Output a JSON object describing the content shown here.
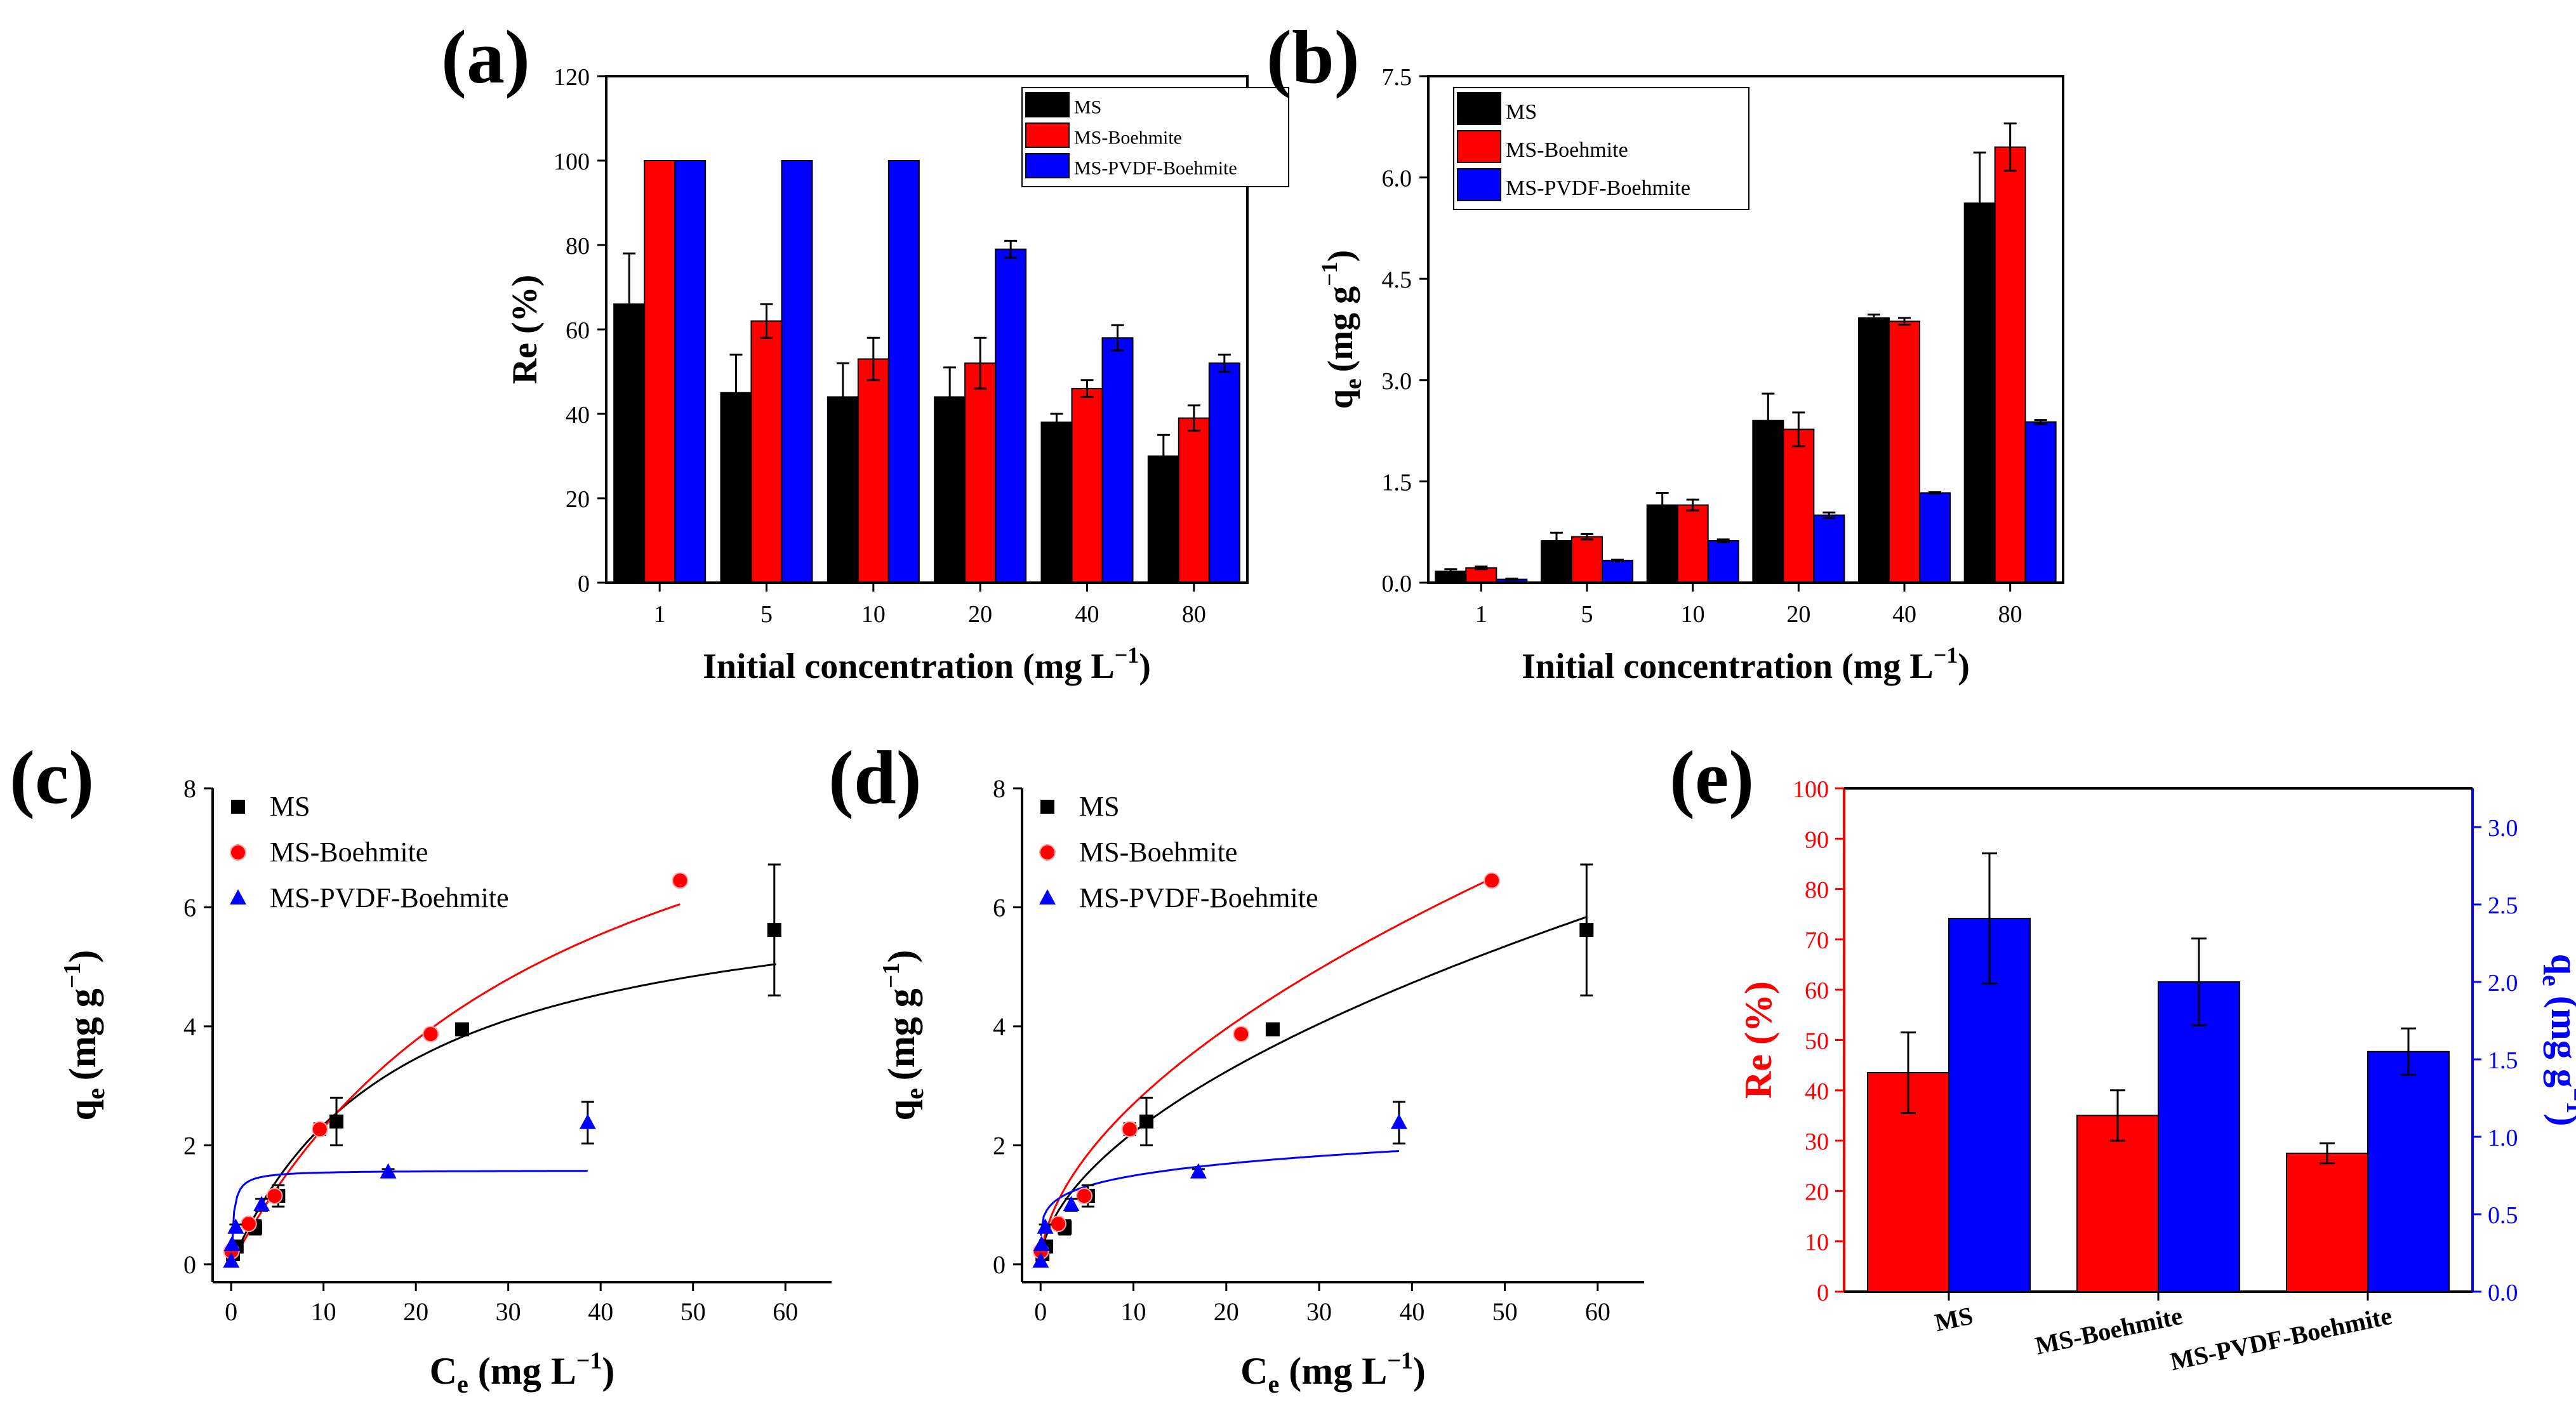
{
  "figure": {
    "colors": {
      "ms": "#000000",
      "msb": "#ff0000",
      "mspvdf": "#0000ff",
      "axis": "#000000"
    }
  },
  "chart_data": [
    {
      "id": "a",
      "panel_label": "(a)",
      "type": "bar",
      "xlabel": "Initial concentration (mg L",
      "xlabel_sup": "−1",
      "xlabel_end": ")",
      "ylabel": "Re (%)",
      "ylim": [
        0,
        120
      ],
      "yticks": [
        0,
        20,
        40,
        60,
        80,
        100,
        120
      ],
      "categories": [
        "1",
        "5",
        "10",
        "20",
        "40",
        "80"
      ],
      "legend_position": "top-right",
      "series": [
        {
          "name": "MS",
          "color": "#000000",
          "values": [
            66,
            45,
            44,
            44,
            38,
            30
          ],
          "errors": [
            12,
            9,
            8,
            7,
            2,
            5
          ]
        },
        {
          "name": "MS-Boehmite",
          "color": "#ff0000",
          "values": [
            100,
            62,
            53,
            52,
            46,
            39
          ],
          "errors": [
            0,
            4,
            5,
            6,
            2,
            3
          ]
        },
        {
          "name": "MS-PVDF-Boehmite",
          "color": "#0000ff",
          "values": [
            100,
            100,
            100,
            79,
            58,
            52
          ],
          "errors": [
            0,
            0,
            0,
            2,
            3,
            2
          ]
        }
      ]
    },
    {
      "id": "b",
      "panel_label": "(b)",
      "type": "bar",
      "xlabel": "Initial concentration (mg L",
      "xlabel_sup": "−1",
      "xlabel_end": ")",
      "ylabel": "q",
      "ylabel_sub": "e",
      "ylabel_unit": "(mg g",
      "ylabel_sup": "−1",
      "ylabel_end": ")",
      "ylim": [
        0,
        7.5
      ],
      "yticks": [
        0.0,
        1.5,
        3.0,
        4.5,
        6.0,
        7.5
      ],
      "ytick_labels": [
        "0.0",
        "1.5",
        "3.0",
        "4.5",
        "6.0",
        "7.5"
      ],
      "categories": [
        "1",
        "5",
        "10",
        "20",
        "40",
        "80"
      ],
      "legend_position": "top-left",
      "series": [
        {
          "name": "MS",
          "color": "#000000",
          "values": [
            0.17,
            0.62,
            1.15,
            2.4,
            3.92,
            5.62
          ],
          "errors": [
            0.03,
            0.12,
            0.18,
            0.4,
            0.05,
            0.75
          ]
        },
        {
          "name": "MS-Boehmite",
          "color": "#ff0000",
          "values": [
            0.22,
            0.68,
            1.15,
            2.27,
            3.87,
            6.45
          ],
          "errors": [
            0.02,
            0.04,
            0.08,
            0.25,
            0.05,
            0.35
          ]
        },
        {
          "name": "MS-PVDF-Boehmite",
          "color": "#0000ff",
          "values": [
            0.05,
            0.33,
            0.62,
            1.0,
            1.33,
            2.38
          ],
          "errors": [
            0.01,
            0.01,
            0.02,
            0.04,
            0.01,
            0.03
          ]
        }
      ]
    },
    {
      "id": "c",
      "panel_label": "(c)",
      "type": "scatter",
      "xlabel": "C",
      "xlabel_sub": "e",
      "xlabel_unit": " (mg L",
      "xlabel_sup": "−1",
      "xlabel_end": ")",
      "ylabel": "q",
      "ylabel_sub": "e",
      "ylabel_unit": "(mg g",
      "ylabel_sup": "−1",
      "ylabel_end": ")",
      "xlim": [
        -2,
        65
      ],
      "xticks": [
        0,
        10,
        20,
        30,
        40,
        50,
        60
      ],
      "ylim": [
        -0.3,
        8
      ],
      "yticks": [
        0,
        2,
        4,
        6,
        8
      ],
      "legend_position": "top-left",
      "series": [
        {
          "name": "MS",
          "color": "#000000",
          "marker": "square",
          "x": [
            0.2,
            0.6,
            2.6,
            5.1,
            11.4,
            25.0,
            58.8
          ],
          "y": [
            0.17,
            0.3,
            0.62,
            1.15,
            2.4,
            3.95,
            5.62
          ],
          "yerr": [
            0.03,
            0.05,
            0.12,
            0.18,
            0.4,
            0.05,
            1.1
          ],
          "fit": {
            "model": "langmuir",
            "qmax": 6.6,
            "K": 0.055,
            "xrange": [
              0,
              59
            ]
          }
        },
        {
          "name": "MS-Boehmite",
          "color": "#ff0000",
          "marker": "circle",
          "x": [
            0.03,
            1.9,
            4.7,
            9.6,
            21.6,
            48.6
          ],
          "y": [
            0.22,
            0.68,
            1.15,
            2.27,
            3.87,
            6.45
          ],
          "yerr": [
            0.02,
            0.04,
            0.08,
            0.1,
            0.05,
            0.06
          ],
          "fit": {
            "model": "langmuir",
            "qmax": 10.5,
            "K": 0.028,
            "xrange": [
              0,
              48.6
            ]
          }
        },
        {
          "name": "MS-PVDF-Boehmite",
          "color": "#0000ff",
          "marker": "triangle",
          "x": [
            0.01,
            0.1,
            0.5,
            3.3,
            17.0,
            38.6
          ],
          "y": [
            0.05,
            0.33,
            0.62,
            1.0,
            1.55,
            2.38
          ],
          "yerr": [
            0.01,
            0.02,
            0.05,
            0.1,
            0.05,
            0.35
          ],
          "fit": {
            "model": "langmuir",
            "qmax": 1.58,
            "K": 4.0,
            "xrange": [
              0,
              38.6
            ]
          }
        }
      ]
    },
    {
      "id": "d",
      "panel_label": "(d)",
      "type": "scatter",
      "xlabel": "C",
      "xlabel_sub": "e",
      "xlabel_unit": " (mg L",
      "xlabel_sup": "−1",
      "xlabel_end": ")",
      "ylabel": "q",
      "ylabel_sub": "e",
      "ylabel_unit": "(mg g",
      "ylabel_sup": "−1",
      "ylabel_end": ")",
      "xlim": [
        -2,
        65
      ],
      "xticks": [
        0,
        10,
        20,
        30,
        40,
        50,
        60
      ],
      "ylim": [
        -0.3,
        8
      ],
      "yticks": [
        0,
        2,
        4,
        6,
        8
      ],
      "legend_position": "top-left",
      "series": [
        {
          "name": "MS",
          "color": "#000000",
          "marker": "square",
          "x": [
            0.2,
            0.6,
            2.6,
            5.1,
            11.4,
            25.0,
            58.8
          ],
          "y": [
            0.17,
            0.3,
            0.62,
            1.15,
            2.4,
            3.95,
            5.62
          ],
          "yerr": [
            0.03,
            0.05,
            0.12,
            0.18,
            0.4,
            0.05,
            1.1
          ],
          "fit": {
            "model": "freundlich",
            "K": 0.63,
            "n": 1.83,
            "xrange": [
              0.05,
              58.8
            ]
          }
        },
        {
          "name": "MS-Boehmite",
          "color": "#ff0000",
          "marker": "circle",
          "x": [
            0.03,
            1.9,
            4.7,
            9.6,
            21.6,
            48.6
          ],
          "y": [
            0.22,
            0.68,
            1.15,
            2.27,
            3.87,
            6.45
          ],
          "yerr": [
            0.02,
            0.04,
            0.08,
            0.1,
            0.05,
            0.06
          ],
          "fit": {
            "model": "freundlich",
            "K": 0.75,
            "n": 1.8,
            "xrange": [
              0.02,
              48.6
            ]
          }
        },
        {
          "name": "MS-PVDF-Boehmite",
          "color": "#0000ff",
          "marker": "triangle",
          "x": [
            0.01,
            0.1,
            0.5,
            3.3,
            17.0,
            38.6
          ],
          "y": [
            0.05,
            0.33,
            0.62,
            1.0,
            1.55,
            2.38
          ],
          "yerr": [
            0.01,
            0.02,
            0.05,
            0.1,
            0.05,
            0.35
          ],
          "fit": {
            "model": "freundlich",
            "K": 0.98,
            "n": 5.5,
            "xrange": [
              0.02,
              38.6
            ]
          }
        }
      ]
    },
    {
      "id": "e",
      "panel_label": "(e)",
      "type": "bar",
      "ylabel": "Re (%)",
      "ylabel_color": "#ff0000",
      "ylim": [
        0,
        100
      ],
      "yticks": [
        0,
        10,
        20,
        30,
        40,
        50,
        60,
        70,
        80,
        90,
        100
      ],
      "y2label": "q",
      "y2label_sub": "e",
      "y2label_unit": " (mg g",
      "y2label_sup": "−1",
      "y2label_end": ")",
      "y2label_color": "#0000ff",
      "y2lim": [
        0,
        3.25
      ],
      "y2ticks": [
        0.0,
        0.5,
        1.0,
        1.5,
        2.0,
        2.5,
        3.0
      ],
      "y2tick_labels": [
        "0.0",
        "0.5",
        "1.0",
        "1.5",
        "2.0",
        "2.5",
        "3.0"
      ],
      "categories": [
        "MS",
        "MS-Boehmite",
        "MS-PVDF-Boehmite"
      ],
      "series": [
        {
          "name": "Re",
          "axis": "left",
          "color": "#ff0000",
          "values": [
            43.5,
            35,
            27.5
          ],
          "errors": [
            8,
            5,
            2
          ]
        },
        {
          "name": "qe",
          "axis": "right",
          "color": "#0000ff",
          "values": [
            2.41,
            2.0,
            1.55
          ],
          "errors": [
            0.42,
            0.28,
            0.15
          ]
        }
      ]
    }
  ]
}
